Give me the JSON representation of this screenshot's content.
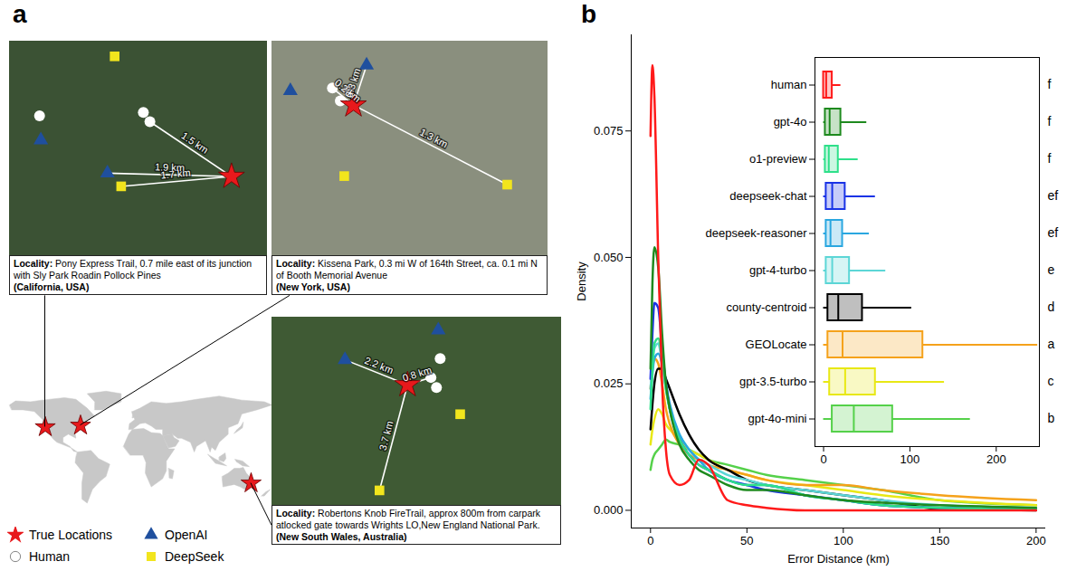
{
  "map_panel": {
    "label": "a",
    "legend": [
      {
        "name": "True Locations",
        "color": "#e8191c",
        "marker": "star"
      },
      {
        "name": "OpenAI",
        "color": "#1f4f9e",
        "marker": "triangle"
      },
      {
        "name": "Human",
        "color": "#ffffff",
        "marker": "circle"
      },
      {
        "name": "DeepSeek",
        "color": "#f2e51d",
        "marker": "square"
      }
    ],
    "world_map": {
      "xlim": [
        -180,
        180
      ],
      "ylim": [
        -60,
        85
      ]
    },
    "sites": [
      {
        "heading": "Locality:",
        "locality": "Pony Express Trail, 0.7 mile east of its junction with Sly Park Roadin Pollock Pines",
        "region": "(California, USA)",
        "lon": -120.6,
        "lat": 38.75,
        "color": "#3b5234",
        "xlim": [
          -3.4,
          0.55
        ],
        "ylim": [
          -1.2,
          2.05
        ],
        "points": [
          {
            "group": "True Locations",
            "dx": 0,
            "dy": 0
          },
          {
            "group": "OpenAI",
            "dx": -1.9,
            "dy": 0.05,
            "label": "1.9 km"
          },
          {
            "group": "OpenAI",
            "dx": -2.92,
            "dy": 0.55
          },
          {
            "group": "DeepSeek",
            "dx": -1.69,
            "dy": -0.15,
            "label": "1.7 km"
          },
          {
            "group": "DeepSeek",
            "dx": -1.79,
            "dy": 1.82
          },
          {
            "group": "Human",
            "dx": -1.25,
            "dy": 0.83,
            "label": "1.5 km"
          },
          {
            "group": "Human",
            "dx": -1.35,
            "dy": 0.97
          },
          {
            "group": "Human",
            "dx": -2.94,
            "dy": 0.92
          }
        ]
      },
      {
        "heading": "Locality:",
        "locality": "Kissena Park, 0.3 mi W of 164th Street, ca. 0.1 mi N of Booth Memorial Avenue",
        "region": "(New York, USA)",
        "lon": -73.81,
        "lat": 40.75,
        "color": "#8a8f7e",
        "xlim": [
          -0.62,
          1.48
        ],
        "ylim": [
          -1.06,
          0.45
        ],
        "points": [
          {
            "group": "True Locations",
            "dx": 0,
            "dy": 0
          },
          {
            "group": "DeepSeek",
            "dx": 1.17,
            "dy": -0.56,
            "label": "1.3 km"
          },
          {
            "group": "DeepSeek",
            "dx": -0.07,
            "dy": -0.5
          },
          {
            "group": "OpenAI",
            "dx": 0.1,
            "dy": 0.28,
            "label": "0.3 km"
          },
          {
            "group": "OpenAI",
            "dx": -0.48,
            "dy": 0.1
          },
          {
            "group": "Human",
            "dx": -0.16,
            "dy": 0.12,
            "label": "0.2 km"
          },
          {
            "group": "Human",
            "dx": -0.1,
            "dy": 0.03
          },
          {
            "group": "Human",
            "dx": -0.04,
            "dy": 0.1
          }
        ]
      },
      {
        "heading": "Locality:",
        "locality": "Robertons Knob FireTrail, approx 800m from carpark atlocked gate towards Wrights LO,New England National Park.",
        "region": "(New South Wales, Australia)",
        "lon": 152.35,
        "lat": -30.5,
        "color": "#3f5a34",
        "xlim": [
          -4.4,
          5.0
        ],
        "ylim": [
          -4.1,
          2.3
        ],
        "points": [
          {
            "group": "True Locations",
            "dx": 0,
            "dy": 0
          },
          {
            "group": "OpenAI",
            "dx": -2.03,
            "dy": 0.85,
            "label": "2.2 km"
          },
          {
            "group": "OpenAI",
            "dx": 1.0,
            "dy": 1.86
          },
          {
            "group": "DeepSeek",
            "dx": -0.91,
            "dy": -3.59,
            "label": "3.7 km"
          },
          {
            "group": "DeepSeek",
            "dx": 1.71,
            "dy": -1.0
          },
          {
            "group": "Human",
            "dx": 0.76,
            "dy": 0.25,
            "label": "0.8 km"
          },
          {
            "group": "Human",
            "dx": 0.94,
            "dy": -0.09
          },
          {
            "group": "Human",
            "dx": 1.06,
            "dy": 0.89
          }
        ]
      }
    ]
  },
  "chart_data": {
    "type": "line",
    "label": "b",
    "xlabel": "Error Distance (km)",
    "ylabel": "Density",
    "xlim": [
      -10,
      205
    ],
    "ylim": [
      -0.0035,
      0.094
    ],
    "xticks": [
      0,
      50,
      100,
      150,
      200
    ],
    "yticks": [
      {
        "value": 0,
        "label": "0.000"
      },
      {
        "value": 0.025,
        "label": "0.025"
      },
      {
        "value": 0.05,
        "label": "0.050"
      },
      {
        "value": 0.075,
        "label": "0.075"
      }
    ],
    "x": [
      0,
      1,
      2,
      4,
      6,
      8,
      10,
      15,
      20,
      25,
      30,
      40,
      50,
      60,
      80,
      100,
      120,
      150,
      200
    ],
    "series": [
      {
        "name": "human",
        "color": "#ff1a1a",
        "values": [
          0.074,
          0.088,
          0.082,
          0.05,
          0.025,
          0.012,
          0.007,
          0.005,
          0.006,
          0.01,
          0.009,
          0.002,
          0.001,
          0.0005,
          0,
          0,
          0,
          0,
          0
        ],
        "box": {
          "low": 0,
          "q1": 0,
          "median": 3,
          "q3": 10,
          "high": 20
        },
        "group_letter": "f"
      },
      {
        "name": "gpt-4o",
        "color": "#1e8a1e",
        "values": [
          0.028,
          0.045,
          0.052,
          0.048,
          0.035,
          0.025,
          0.02,
          0.013,
          0.01,
          0.008,
          0.007,
          0.005,
          0.004,
          0.004,
          0.003,
          0.002,
          0.0015,
          0.001,
          0.0005
        ],
        "box": {
          "low": 0,
          "q1": 2,
          "median": 7,
          "q3": 20,
          "high": 50
        },
        "group_letter": "f"
      },
      {
        "name": "o1-preview",
        "color": "#2ee08a",
        "values": [
          0.02,
          0.028,
          0.033,
          0.034,
          0.03,
          0.024,
          0.02,
          0.014,
          0.011,
          0.009,
          0.008,
          0.006,
          0.005,
          0.005,
          0.003,
          0.002,
          0.001,
          0.0005,
          0.0002
        ],
        "box": {
          "low": 0,
          "q1": 2,
          "median": 6,
          "q3": 17,
          "high": 40
        },
        "group_letter": "f"
      },
      {
        "name": "deepseek-chat",
        "color": "#1a33e6",
        "values": [
          0.026,
          0.035,
          0.041,
          0.04,
          0.032,
          0.025,
          0.02,
          0.014,
          0.011,
          0.009,
          0.008,
          0.006,
          0.005,
          0.004,
          0.003,
          0.002,
          0.001,
          0.0005,
          0.0002
        ],
        "box": {
          "low": 0,
          "q1": 3,
          "median": 10,
          "q3": 25,
          "high": 60
        },
        "group_letter": "ef"
      },
      {
        "name": "deepseek-reasoner",
        "color": "#2aa7e0",
        "values": [
          0.022,
          0.027,
          0.03,
          0.031,
          0.029,
          0.025,
          0.021,
          0.015,
          0.012,
          0.01,
          0.008,
          0.006,
          0.005,
          0.005,
          0.003,
          0.002,
          0.001,
          0.0005,
          0.0002
        ],
        "box": {
          "low": 0,
          "q1": 3,
          "median": 8,
          "q3": 22,
          "high": 53
        },
        "group_letter": "ef"
      },
      {
        "name": "gpt-4-turbo",
        "color": "#5cd6d6",
        "values": [
          0.024,
          0.029,
          0.032,
          0.033,
          0.029,
          0.024,
          0.02,
          0.015,
          0.012,
          0.01,
          0.009,
          0.007,
          0.006,
          0.005,
          0.004,
          0.003,
          0.002,
          0.001,
          0.0005
        ],
        "box": {
          "low": 0,
          "q1": 3,
          "median": 10,
          "q3": 30,
          "high": 72
        },
        "group_letter": "e"
      },
      {
        "name": "county-centroid",
        "color": "#000000",
        "values": [
          0.016,
          0.021,
          0.025,
          0.028,
          0.028,
          0.026,
          0.024,
          0.019,
          0.015,
          0.012,
          0.01,
          0.008,
          0.006,
          0.005,
          0.004,
          0.003,
          0.002,
          0.0003,
          0
        ],
        "box": {
          "low": 0,
          "q1": 5,
          "median": 17,
          "q3": 45,
          "high": 102
        },
        "group_letter": "d"
      },
      {
        "name": "GEOLocate",
        "color": "#f5a21b",
        "values": [
          0.024,
          0.028,
          0.03,
          0.029,
          0.025,
          0.02,
          0.017,
          0.013,
          0.011,
          0.01,
          0.009,
          0.008,
          0.007,
          0.006,
          0.005,
          0.005,
          0.004,
          0.003,
          0.002
        ],
        "box": {
          "low": 0,
          "q1": 5,
          "median": 22,
          "q3": 115,
          "high": 248
        },
        "group_letter": "a"
      },
      {
        "name": "gpt-3.5-turbo",
        "color": "#e8e815",
        "values": [
          0.013,
          0.016,
          0.018,
          0.02,
          0.019,
          0.017,
          0.016,
          0.014,
          0.012,
          0.011,
          0.01,
          0.008,
          0.007,
          0.006,
          0.005,
          0.004,
          0.003,
          0.002,
          0.001
        ],
        "box": {
          "low": 0,
          "q1": 7,
          "median": 25,
          "q3": 60,
          "high": 140
        },
        "group_letter": "c"
      },
      {
        "name": "gpt-4o-mini",
        "color": "#55d14a",
        "values": [
          0.008,
          0.01,
          0.011,
          0.012,
          0.013,
          0.014,
          0.0135,
          0.013,
          0.012,
          0.011,
          0.01,
          0.009,
          0.008,
          0.007,
          0.006,
          0.005,
          0.004,
          0.002,
          0.001
        ],
        "box": {
          "low": 0,
          "q1": 10,
          "median": 35,
          "q3": 80,
          "high": 170
        },
        "group_letter": "b"
      }
    ],
    "inset": {
      "type": "box",
      "xlim": [
        -10,
        250
      ],
      "xticks": [
        0,
        100,
        200
      ]
    }
  }
}
